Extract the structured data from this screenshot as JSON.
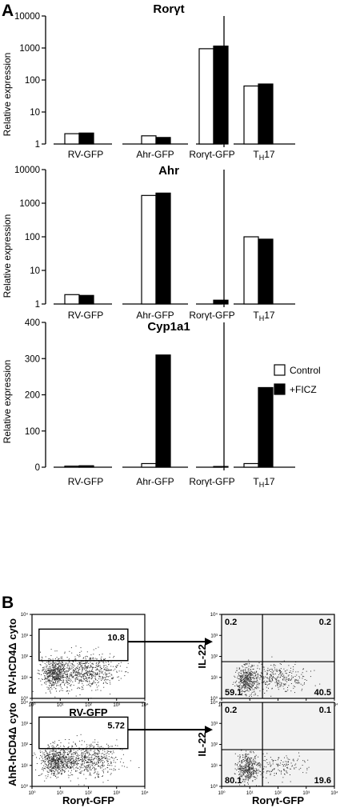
{
  "panel_labels": [
    "A",
    "B"
  ],
  "colors": {
    "control": "#ffffff",
    "ficz": "#000000",
    "stroke": "#000000",
    "flow_bg": "#f2f2f2"
  },
  "chart_data": [
    {
      "type": "bar",
      "title": "Rorγt",
      "ylabel": "Relative expression",
      "scale": "log",
      "ylim": [
        1,
        10000
      ],
      "yticks": [
        "1",
        "10",
        "100",
        "1000",
        "10000"
      ],
      "categories": [
        "RV-GFP",
        "Ahr-GFP",
        "Rorγt-GFP",
        "TH17"
      ],
      "series": [
        {
          "name": "Control",
          "values": [
            2.1,
            1.8,
            950,
            65
          ]
        },
        {
          "name": "+FICZ",
          "values": [
            2.2,
            1.6,
            1150,
            75
          ]
        }
      ]
    },
    {
      "type": "bar",
      "title": "Ahr",
      "ylabel": "Relative expression",
      "scale": "log",
      "ylim": [
        1,
        10000
      ],
      "yticks": [
        "1",
        "10",
        "100",
        "1000",
        "10000"
      ],
      "categories": [
        "RV-GFP",
        "Ahr-GFP",
        "Rorγt-GFP",
        "TH17"
      ],
      "series": [
        {
          "name": "Control",
          "values": [
            1.9,
            1700,
            1,
            100
          ]
        },
        {
          "name": "+FICZ",
          "values": [
            1.8,
            2000,
            1.3,
            85
          ]
        }
      ]
    },
    {
      "type": "bar",
      "title": "Cyp1a1",
      "ylabel": "Relative expression",
      "scale": "linear",
      "ylim": [
        0,
        400
      ],
      "yticks": [
        "0",
        "100",
        "200",
        "300",
        "400"
      ],
      "categories": [
        "RV-GFP",
        "Ahr-GFP",
        "Rorγt-GFP",
        "TH17"
      ],
      "legend": [
        "Control",
        "+FICZ"
      ],
      "legend_position": "top-right",
      "series": [
        {
          "name": "Control",
          "values": [
            3,
            10,
            0,
            10
          ]
        },
        {
          "name": "+FICZ",
          "values": [
            4,
            310,
            2,
            220
          ]
        }
      ]
    },
    {
      "type": "scatter",
      "subtype": "flow-cytometry",
      "scale": "log",
      "xlim": [
        1,
        10000
      ],
      "ylim": [
        1,
        10000
      ],
      "ticks": [
        "10⁰",
        "10¹",
        "10²",
        "10³",
        "10⁴"
      ],
      "plots": [
        {
          "xlabel": "RV-GFP",
          "ylabel": "RV-hCD4Δ cyto",
          "gate_value": "10.8"
        },
        {
          "xlabel": "RV-GFP",
          "ylabel": "IL-22",
          "quadrants": {
            "ul": "0.2",
            "ur": "0.2",
            "ll": "59.1",
            "lr": "40.5"
          }
        },
        {
          "xlabel": "Rorγt-GFP",
          "ylabel": "AhR-hCD4Δ cyto",
          "gate_value": "5.72"
        },
        {
          "xlabel": "Rorγt-GFP",
          "ylabel": "IL-22",
          "quadrants": {
            "ul": "0.2",
            "ur": "0.1",
            "ll": "80.1",
            "lr": "19.6"
          }
        }
      ]
    }
  ]
}
